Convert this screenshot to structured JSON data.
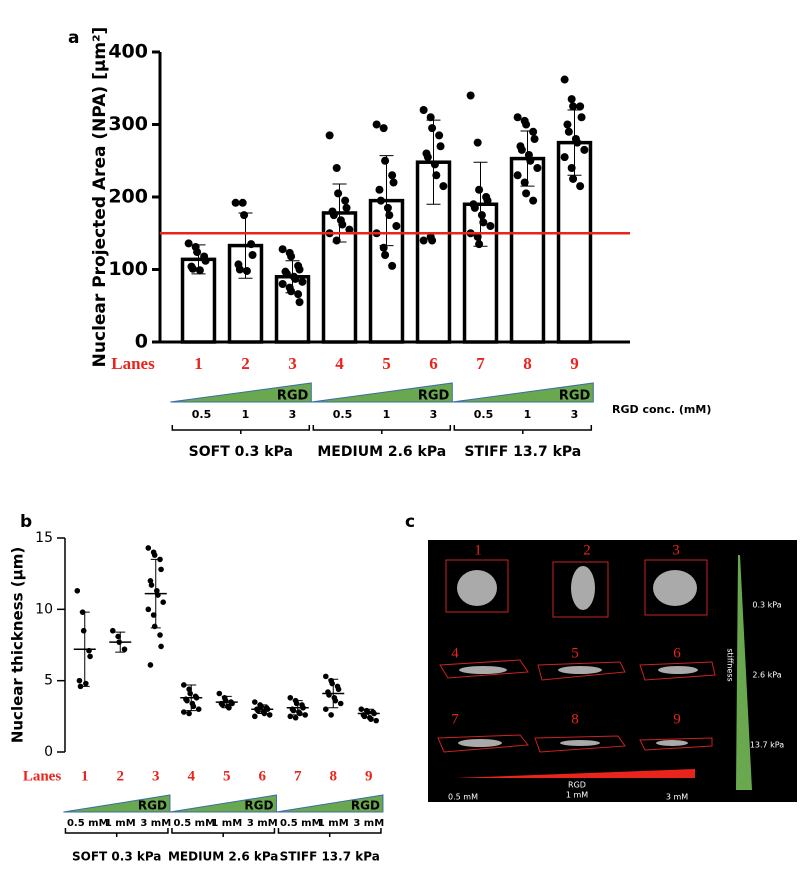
{
  "chart_data": [
    {
      "panel": "a",
      "type": "bar",
      "ylabel": "Nuclear Projected Area (NPA) [µm²]",
      "categories_label": "Lanes",
      "categories": [
        "1",
        "2",
        "3",
        "4",
        "5",
        "6",
        "7",
        "8",
        "9"
      ],
      "values": [
        114,
        133,
        90,
        178,
        195,
        248,
        190,
        253,
        275
      ],
      "errors": [
        20,
        45,
        22,
        40,
        62,
        58,
        58,
        38,
        45
      ],
      "points": [
        [
          136,
          131,
          124,
          118,
          112,
          104,
          101,
          99
        ],
        [
          192,
          192,
          175,
          135,
          120,
          107,
          100,
          98
        ],
        [
          128,
          123,
          118,
          105,
          100,
          97,
          94,
          90,
          87,
          83,
          80,
          75,
          70,
          66,
          55
        ],
        [
          285,
          240,
          205,
          195,
          185,
          180,
          175,
          168,
          162,
          155,
          150,
          140
        ],
        [
          300,
          295,
          250,
          230,
          220,
          210,
          195,
          185,
          175,
          160,
          150,
          130,
          120,
          105
        ],
        [
          320,
          310,
          295,
          285,
          270,
          260,
          255,
          245,
          230,
          215,
          140,
          145,
          140
        ],
        [
          340,
          275,
          210,
          200,
          195,
          190,
          185,
          175,
          165,
          160,
          150,
          145,
          135
        ],
        [
          310,
          305,
          300,
          290,
          280,
          270,
          265,
          258,
          250,
          240,
          230,
          220,
          205,
          195
        ],
        [
          362,
          335,
          325,
          325,
          310,
          300,
          290,
          280,
          275,
          265,
          255,
          240,
          225,
          215
        ]
      ],
      "reference_line": {
        "value": 150,
        "color": "#e8241c"
      },
      "ylim": [
        0,
        400
      ],
      "yticks": [
        0,
        100,
        200,
        300,
        400
      ],
      "color": "#000000",
      "rgd_label": "RGD",
      "conc_labels": [
        "0.5",
        "1",
        "3"
      ],
      "conc_title": "RGD conc. (mM)",
      "groups": [
        "SOFT 0.3 kPa",
        "MEDIUM 2.6 kPa",
        "STIFF 13.7 kPa"
      ]
    },
    {
      "panel": "b",
      "type": "strip",
      "ylabel": "Nuclear thickness (µm)",
      "categories_label": "Lanes",
      "categories": [
        "1",
        "2",
        "3",
        "4",
        "5",
        "6",
        "7",
        "8",
        "9"
      ],
      "values": [
        7.2,
        7.7,
        11.1,
        3.8,
        3.5,
        3.0,
        3.1,
        4.1,
        2.7
      ],
      "errors": [
        2.6,
        0.7,
        2.4,
        0.9,
        0.4,
        0.3,
        0.5,
        1.0,
        0.3
      ],
      "points": [
        [
          11.3,
          9.8,
          8.5,
          7.1,
          6.7,
          5.0,
          4.6,
          4.8
        ],
        [
          8.5,
          8.1,
          7.7,
          7.2
        ],
        [
          14.3,
          14.0,
          13.8,
          13.5,
          12.8,
          12.0,
          11.7,
          11.3,
          11.0,
          10.5,
          10.0,
          9.6,
          8.8,
          8.2,
          7.4,
          6.1
        ],
        [
          4.7,
          4.4,
          4.1,
          3.9,
          3.8,
          3.7,
          3.6,
          3.4,
          3.2,
          3.0,
          2.8,
          2.7
        ],
        [
          4.1,
          3.8,
          3.6,
          3.5,
          3.4,
          3.4,
          3.3,
          3.2,
          3.1
        ],
        [
          3.5,
          3.3,
          3.2,
          3.1,
          3.0,
          3.0,
          2.9,
          2.8,
          2.7,
          2.6,
          2.5
        ],
        [
          3.8,
          3.6,
          3.4,
          3.3,
          3.1,
          3.0,
          2.9,
          2.8,
          2.7,
          2.6,
          2.5,
          2.4
        ],
        [
          5.3,
          5.0,
          4.8,
          4.6,
          4.4,
          4.2,
          4.0,
          3.8,
          3.6,
          3.4,
          3.0,
          2.6
        ],
        [
          3.0,
          2.9,
          2.8,
          2.8,
          2.7,
          2.6,
          2.5,
          2.4,
          2.3,
          2.2
        ]
      ],
      "ylim": [
        0,
        15
      ],
      "yticks": [
        0,
        5,
        10,
        15
      ],
      "color": "#000000",
      "rgd_label": "RGD",
      "conc_labels": [
        "0.5 mM",
        "1 mM",
        "3 mM"
      ],
      "groups": [
        "SOFT 0.3 kPa",
        "MEDIUM 2.6 kPa",
        "STIFF 13.7 kPa"
      ]
    }
  ],
  "image_panel": {
    "panel": "c",
    "cells": [
      "1",
      "2",
      "3",
      "4",
      "5",
      "6",
      "7",
      "8",
      "9"
    ],
    "stiffness_levels": [
      "0.3 kPa",
      "2.6 kPa",
      "13.7 kPa"
    ],
    "stiffness_label": "stiffness",
    "rgd_label": "RGD",
    "rgd_levels": [
      "0.5 mM",
      "1 mM",
      "3 mM"
    ]
  }
}
